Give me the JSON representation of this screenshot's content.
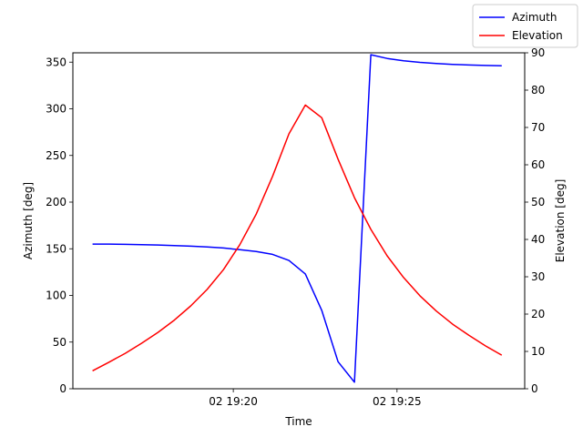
{
  "chart_data": {
    "type": "line",
    "xlabel": "Time",
    "ylabel_left": "Azimuth [deg]",
    "ylabel_right": "Elevation [deg]",
    "x_ticks": [
      "02 19:20",
      "02 19:25"
    ],
    "x_tick_minutes": [
      20,
      25
    ],
    "x_range_minutes": [
      15.1,
      28.9
    ],
    "ylim_left": [
      0,
      360
    ],
    "ylim_right": [
      0,
      90
    ],
    "y_ticks_left": [
      0,
      50,
      100,
      150,
      200,
      250,
      300,
      350
    ],
    "y_ticks_right": [
      0,
      10,
      20,
      30,
      40,
      50,
      60,
      70,
      80,
      90
    ],
    "legend_position": "top-right",
    "grid": false,
    "x_minutes": [
      15.7,
      16.2,
      16.7,
      17.2,
      17.7,
      18.2,
      18.7,
      19.2,
      19.7,
      20.2,
      20.7,
      21.2,
      21.7,
      22.2,
      22.7,
      23.2,
      23.7,
      24.2,
      24.7,
      25.2,
      25.7,
      26.2,
      26.7,
      27.2,
      27.7,
      28.2
    ],
    "series": [
      {
        "name": "Azimuth",
        "color": "#0000ff",
        "axis": "left",
        "values": [
          155,
          155,
          154.7,
          154.4,
          154,
          153.5,
          152.8,
          152,
          150.8,
          149,
          147,
          144,
          137.5,
          123,
          84,
          29,
          7,
          358,
          354,
          351.5,
          349.8,
          348.5,
          347.6,
          346.9,
          346.4,
          346
        ]
      },
      {
        "name": "Elevation",
        "color": "#ff0000",
        "axis": "right",
        "values": [
          4.8,
          7.1,
          9.5,
          12.2,
          15.1,
          18.4,
          22.2,
          26.6,
          31.9,
          38.6,
          46.8,
          56.9,
          68.3,
          76,
          72.6,
          61.5,
          51.2,
          42.7,
          35.6,
          29.8,
          24.9,
          20.8,
          17.3,
          14.3,
          11.5,
          9.0
        ]
      }
    ]
  }
}
